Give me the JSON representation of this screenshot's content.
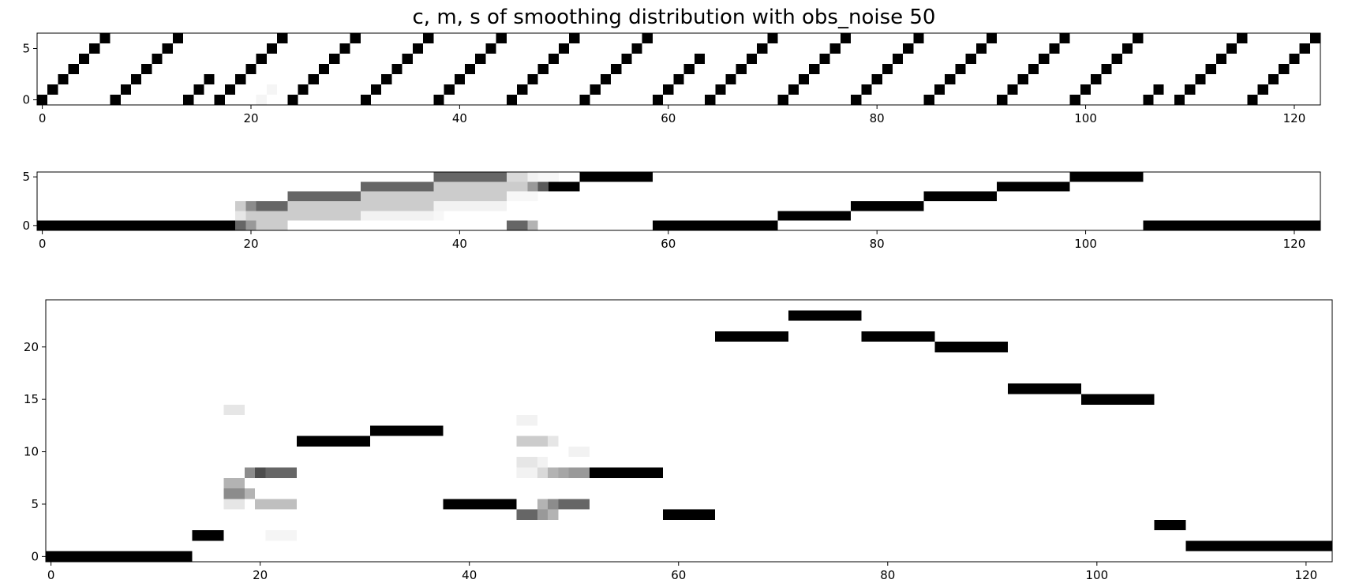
{
  "title": "c, m, s of smoothing distribution with obs_noise 50",
  "colors": {
    "mark": "#000000",
    "frame": "#000000",
    "background": "#ffffff"
  },
  "chart_data": [
    {
      "type": "heatmap",
      "title": "",
      "xlabel": "",
      "ylabel": "",
      "xlim": [
        -0.5,
        122.5
      ],
      "ylim": [
        -0.5,
        6.5
      ],
      "xticks": [
        0,
        20,
        40,
        60,
        80,
        100,
        120
      ],
      "yticks": [
        0,
        5
      ],
      "grid": false,
      "runs": [
        [
          0,
          0,
          1
        ],
        [
          1,
          1,
          1
        ],
        [
          2,
          2,
          1
        ],
        [
          3,
          3,
          1
        ],
        [
          4,
          4,
          1
        ],
        [
          5,
          5,
          1
        ],
        [
          6,
          6,
          1
        ],
        [
          7,
          0,
          1
        ],
        [
          8,
          1,
          1
        ],
        [
          9,
          2,
          1
        ],
        [
          10,
          3,
          1
        ],
        [
          11,
          4,
          1
        ],
        [
          12,
          5,
          1
        ],
        [
          13,
          6,
          1
        ],
        [
          14,
          0,
          1
        ],
        [
          15,
          1,
          1
        ],
        [
          16,
          2,
          1
        ],
        [
          17,
          0,
          1
        ],
        [
          18,
          1,
          1
        ],
        [
          19,
          2,
          1
        ],
        [
          20,
          3,
          1
        ],
        [
          21,
          4,
          1
        ],
        [
          22,
          5,
          1
        ],
        [
          23,
          6,
          1
        ],
        [
          24,
          0,
          1
        ],
        [
          25,
          1,
          1
        ],
        [
          26,
          2,
          1
        ],
        [
          27,
          3,
          1
        ],
        [
          28,
          4,
          1
        ],
        [
          29,
          5,
          1
        ],
        [
          30,
          6,
          1
        ],
        [
          31,
          0,
          1
        ],
        [
          32,
          1,
          1
        ],
        [
          33,
          2,
          1
        ],
        [
          34,
          3,
          1
        ],
        [
          35,
          4,
          1
        ],
        [
          36,
          5,
          1
        ],
        [
          37,
          6,
          1
        ],
        [
          38,
          0,
          1
        ],
        [
          39,
          1,
          1
        ],
        [
          40,
          2,
          1
        ],
        [
          41,
          3,
          1
        ],
        [
          42,
          4,
          1
        ],
        [
          43,
          5,
          1
        ],
        [
          44,
          6,
          1
        ],
        [
          45,
          0,
          1
        ],
        [
          46,
          1,
          1
        ],
        [
          47,
          2,
          1
        ],
        [
          48,
          3,
          1
        ],
        [
          49,
          4,
          1
        ],
        [
          50,
          5,
          1
        ],
        [
          51,
          6,
          1
        ],
        [
          52,
          0,
          1
        ],
        [
          53,
          1,
          1
        ],
        [
          54,
          2,
          1
        ],
        [
          55,
          3,
          1
        ],
        [
          56,
          4,
          1
        ],
        [
          57,
          5,
          1
        ],
        [
          58,
          6,
          1
        ],
        [
          59,
          0,
          1
        ],
        [
          60,
          1,
          1
        ],
        [
          61,
          2,
          1
        ],
        [
          62,
          3,
          1
        ],
        [
          63,
          4,
          1
        ],
        [
          64,
          0,
          1
        ],
        [
          65,
          1,
          1
        ],
        [
          66,
          2,
          1
        ],
        [
          67,
          3,
          1
        ],
        [
          68,
          4,
          1
        ],
        [
          69,
          5,
          1
        ],
        [
          70,
          6,
          1
        ],
        [
          71,
          0,
          1
        ],
        [
          72,
          1,
          1
        ],
        [
          73,
          2,
          1
        ],
        [
          74,
          3,
          1
        ],
        [
          75,
          4,
          1
        ],
        [
          76,
          5,
          1
        ],
        [
          77,
          6,
          1
        ],
        [
          78,
          0,
          1
        ],
        [
          79,
          1,
          1
        ],
        [
          80,
          2,
          1
        ],
        [
          81,
          3,
          1
        ],
        [
          82,
          4,
          1
        ],
        [
          83,
          5,
          1
        ],
        [
          84,
          6,
          1
        ],
        [
          85,
          0,
          1
        ],
        [
          86,
          1,
          1
        ],
        [
          87,
          2,
          1
        ],
        [
          88,
          3,
          1
        ],
        [
          89,
          4,
          1
        ],
        [
          90,
          5,
          1
        ],
        [
          91,
          6,
          1
        ],
        [
          92,
          0,
          1
        ],
        [
          93,
          1,
          1
        ],
        [
          94,
          2,
          1
        ],
        [
          95,
          3,
          1
        ],
        [
          96,
          4,
          1
        ],
        [
          97,
          5,
          1
        ],
        [
          98,
          6,
          1
        ],
        [
          99,
          0,
          1
        ],
        [
          100,
          1,
          1
        ],
        [
          101,
          2,
          1
        ],
        [
          102,
          3,
          1
        ],
        [
          103,
          4,
          1
        ],
        [
          104,
          5,
          1
        ],
        [
          105,
          6,
          1
        ],
        [
          106,
          0,
          1
        ],
        [
          107,
          1,
          1
        ],
        [
          109,
          0,
          1
        ],
        [
          110,
          1,
          1
        ],
        [
          111,
          2,
          1
        ],
        [
          112,
          3,
          1
        ],
        [
          113,
          4,
          1
        ],
        [
          114,
          5,
          1
        ],
        [
          115,
          6,
          1
        ],
        [
          116,
          0,
          1
        ],
        [
          117,
          1,
          1
        ],
        [
          118,
          2,
          1
        ],
        [
          119,
          3,
          1
        ],
        [
          120,
          4,
          1
        ],
        [
          121,
          5,
          1
        ],
        [
          122,
          6,
          1
        ],
        [
          21,
          0,
          0.04
        ],
        [
          22,
          1,
          0.04
        ]
      ]
    },
    {
      "type": "heatmap",
      "title": "",
      "xlabel": "",
      "ylabel": "",
      "xlim": [
        -0.5,
        122.5
      ],
      "ylim": [
        -0.5,
        5.5
      ],
      "xticks": [
        0,
        20,
        40,
        60,
        80,
        100,
        120
      ],
      "yticks": [
        0,
        5
      ],
      "grid": false,
      "runs": [
        [
          0,
          0,
          19,
          1
        ],
        [
          19,
          0,
          1,
          0.6
        ],
        [
          20,
          0,
          1,
          0.4
        ],
        [
          21,
          0,
          3,
          0.2
        ],
        [
          19,
          1,
          1,
          0.1
        ],
        [
          20,
          1,
          1,
          0.2
        ],
        [
          21,
          1,
          3,
          0.2
        ],
        [
          24,
          1,
          7,
          0.2
        ],
        [
          19,
          2,
          1,
          0.2
        ],
        [
          20,
          2,
          1,
          0.45
        ],
        [
          21,
          2,
          3,
          0.6
        ],
        [
          24,
          2,
          7,
          0.2
        ],
        [
          31,
          2,
          7,
          0.2
        ],
        [
          38,
          2,
          7,
          0.05
        ],
        [
          24,
          3,
          7,
          0.6
        ],
        [
          31,
          3,
          7,
          0.2
        ],
        [
          38,
          3,
          7,
          0.2
        ],
        [
          45,
          3,
          3,
          0.03
        ],
        [
          31,
          4,
          7,
          0.6
        ],
        [
          38,
          4,
          7,
          0.2
        ],
        [
          45,
          4,
          2,
          0.2
        ],
        [
          47,
          4,
          1,
          0.45
        ],
        [
          38,
          5,
          7,
          0.6
        ],
        [
          45,
          5,
          2,
          0.15
        ],
        [
          47,
          5,
          1,
          0.05
        ],
        [
          48,
          5,
          2,
          0.03
        ],
        [
          31,
          1,
          7,
          0.05
        ],
        [
          38,
          1,
          1,
          0.03
        ],
        [
          45,
          0,
          2,
          0.6
        ],
        [
          47,
          0,
          1,
          0.3
        ],
        [
          47,
          4,
          1,
          0.4
        ],
        [
          48,
          4,
          1,
          0.65
        ],
        [
          49,
          4,
          3,
          1
        ],
        [
          52,
          5,
          7,
          1
        ],
        [
          59,
          0,
          12,
          1
        ],
        [
          71,
          1,
          7,
          1
        ],
        [
          78,
          2,
          7,
          1
        ],
        [
          85,
          3,
          7,
          1
        ],
        [
          92,
          4,
          7,
          1
        ],
        [
          99,
          5,
          7,
          1
        ],
        [
          106,
          0,
          17,
          1
        ]
      ]
    },
    {
      "type": "heatmap",
      "title": "",
      "xlabel": "",
      "ylabel": "",
      "xlim": [
        -0.5,
        122.5
      ],
      "ylim": [
        -0.5,
        24.5
      ],
      "xticks": [
        0,
        20,
        40,
        60,
        80,
        100,
        120
      ],
      "yticks": [
        0,
        5,
        10,
        15,
        20
      ],
      "grid": false,
      "runs": [
        [
          0,
          0,
          14,
          1
        ],
        [
          14,
          2,
          3,
          1
        ],
        [
          17,
          14,
          2,
          0.1
        ],
        [
          17,
          7,
          2,
          0.3
        ],
        [
          17,
          6,
          2,
          0.45
        ],
        [
          17,
          5,
          2,
          0.1
        ],
        [
          19,
          6,
          1,
          0.3
        ],
        [
          19,
          8,
          1,
          0.45
        ],
        [
          20,
          8,
          1,
          0.7
        ],
        [
          21,
          8,
          3,
          0.6
        ],
        [
          20,
          5,
          1,
          0.25
        ],
        [
          21,
          5,
          3,
          0.25
        ],
        [
          21,
          2,
          3,
          0.04
        ],
        [
          24,
          11,
          7,
          1
        ],
        [
          31,
          12,
          7,
          1
        ],
        [
          38,
          5,
          7,
          1
        ],
        [
          45,
          13,
          2,
          0.05
        ],
        [
          45,
          11,
          3,
          0.2
        ],
        [
          48,
          11,
          1,
          0.1
        ],
        [
          45,
          9,
          2,
          0.1
        ],
        [
          47,
          9,
          1,
          0.05
        ],
        [
          45,
          8,
          2,
          0.05
        ],
        [
          47,
          8,
          1,
          0.15
        ],
        [
          48,
          8,
          1,
          0.3
        ],
        [
          49,
          8,
          1,
          0.35
        ],
        [
          50,
          8,
          2,
          0.4
        ],
        [
          50,
          10,
          2,
          0.05
        ],
        [
          45,
          4,
          2,
          0.6
        ],
        [
          47,
          4,
          1,
          0.4
        ],
        [
          48,
          4,
          1,
          0.3
        ],
        [
          47,
          5,
          1,
          0.3
        ],
        [
          48,
          5,
          1,
          0.45
        ],
        [
          49,
          5,
          1,
          0.6
        ],
        [
          50,
          5,
          2,
          0.6
        ],
        [
          52,
          8,
          7,
          1
        ],
        [
          59,
          4,
          5,
          1
        ],
        [
          64,
          21,
          7,
          1
        ],
        [
          71,
          23,
          7,
          1
        ],
        [
          78,
          21,
          7,
          1
        ],
        [
          85,
          20,
          7,
          1
        ],
        [
          92,
          16,
          7,
          1
        ],
        [
          99,
          15,
          7,
          1
        ],
        [
          106,
          3,
          3,
          1
        ],
        [
          109,
          1,
          14,
          1
        ]
      ]
    }
  ]
}
